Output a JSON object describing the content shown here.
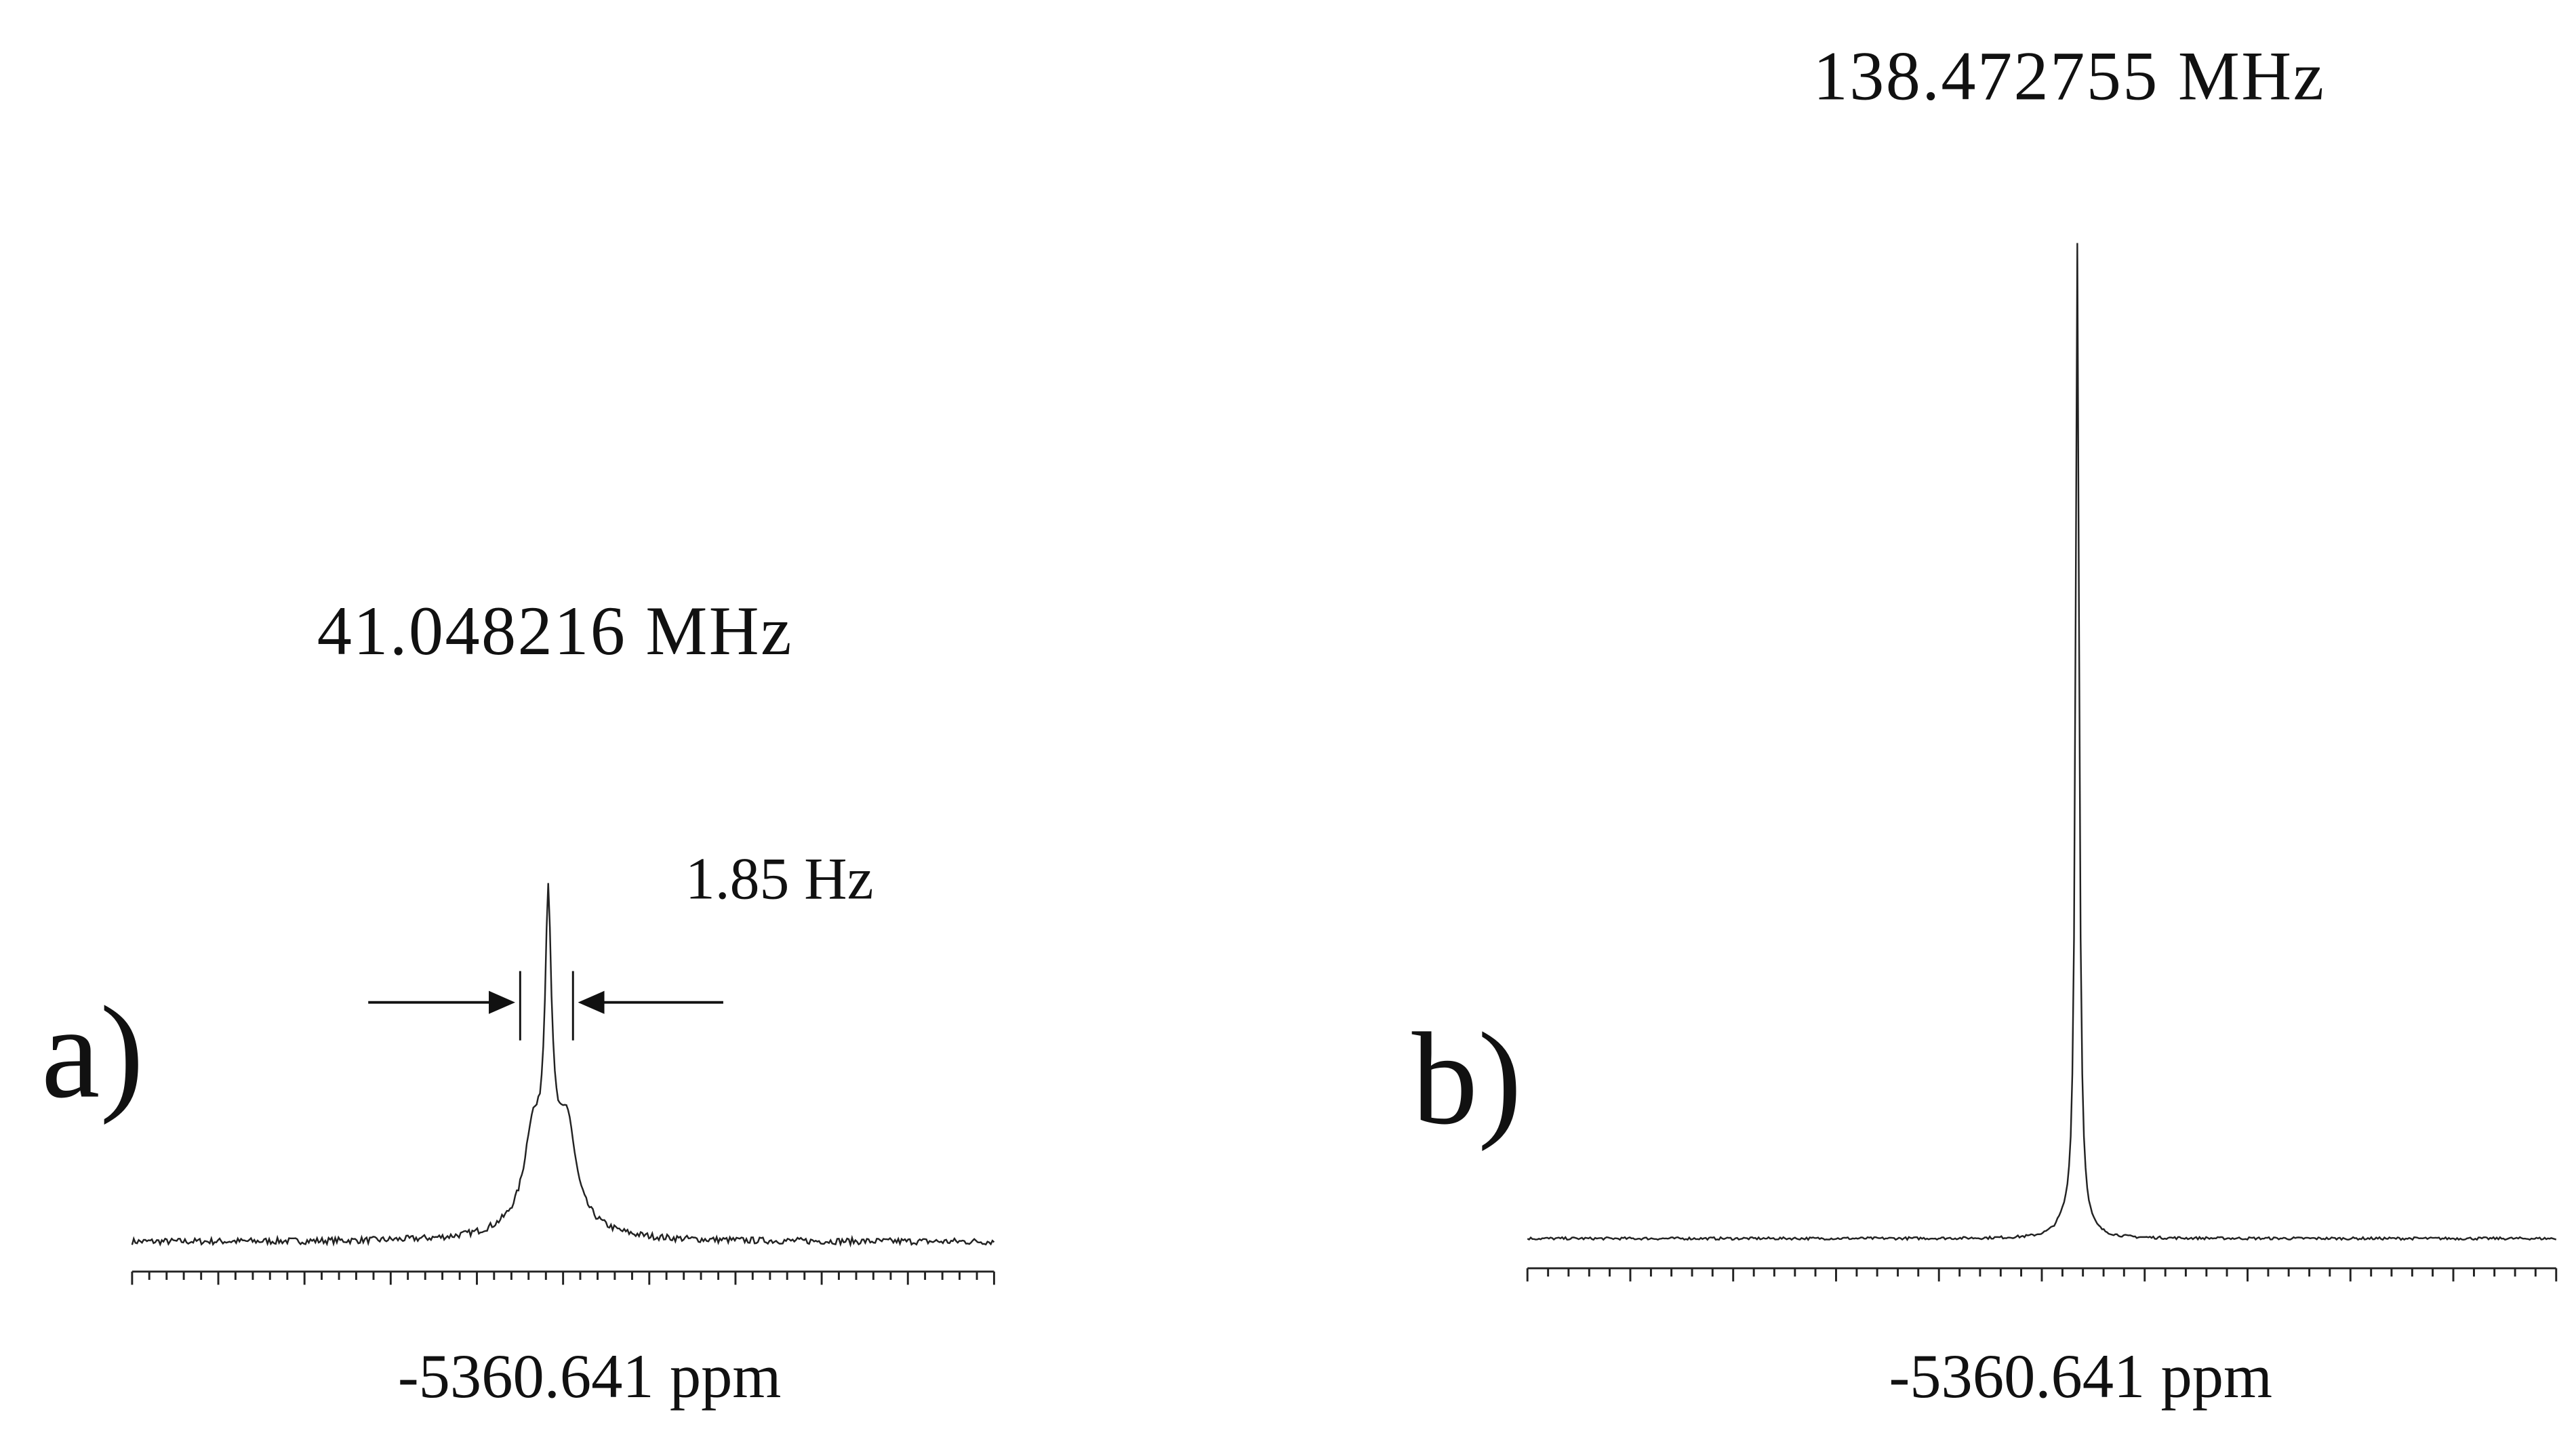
{
  "panels": [
    {
      "label": "a)",
      "frequency": "41.048216 MHz",
      "axis_label": "-5360.641 ppm",
      "linewidth": "1.85 Hz"
    },
    {
      "label": "b)",
      "frequency": "138.472755 MHz",
      "axis_label": "-5360.641 ppm"
    }
  ]
}
